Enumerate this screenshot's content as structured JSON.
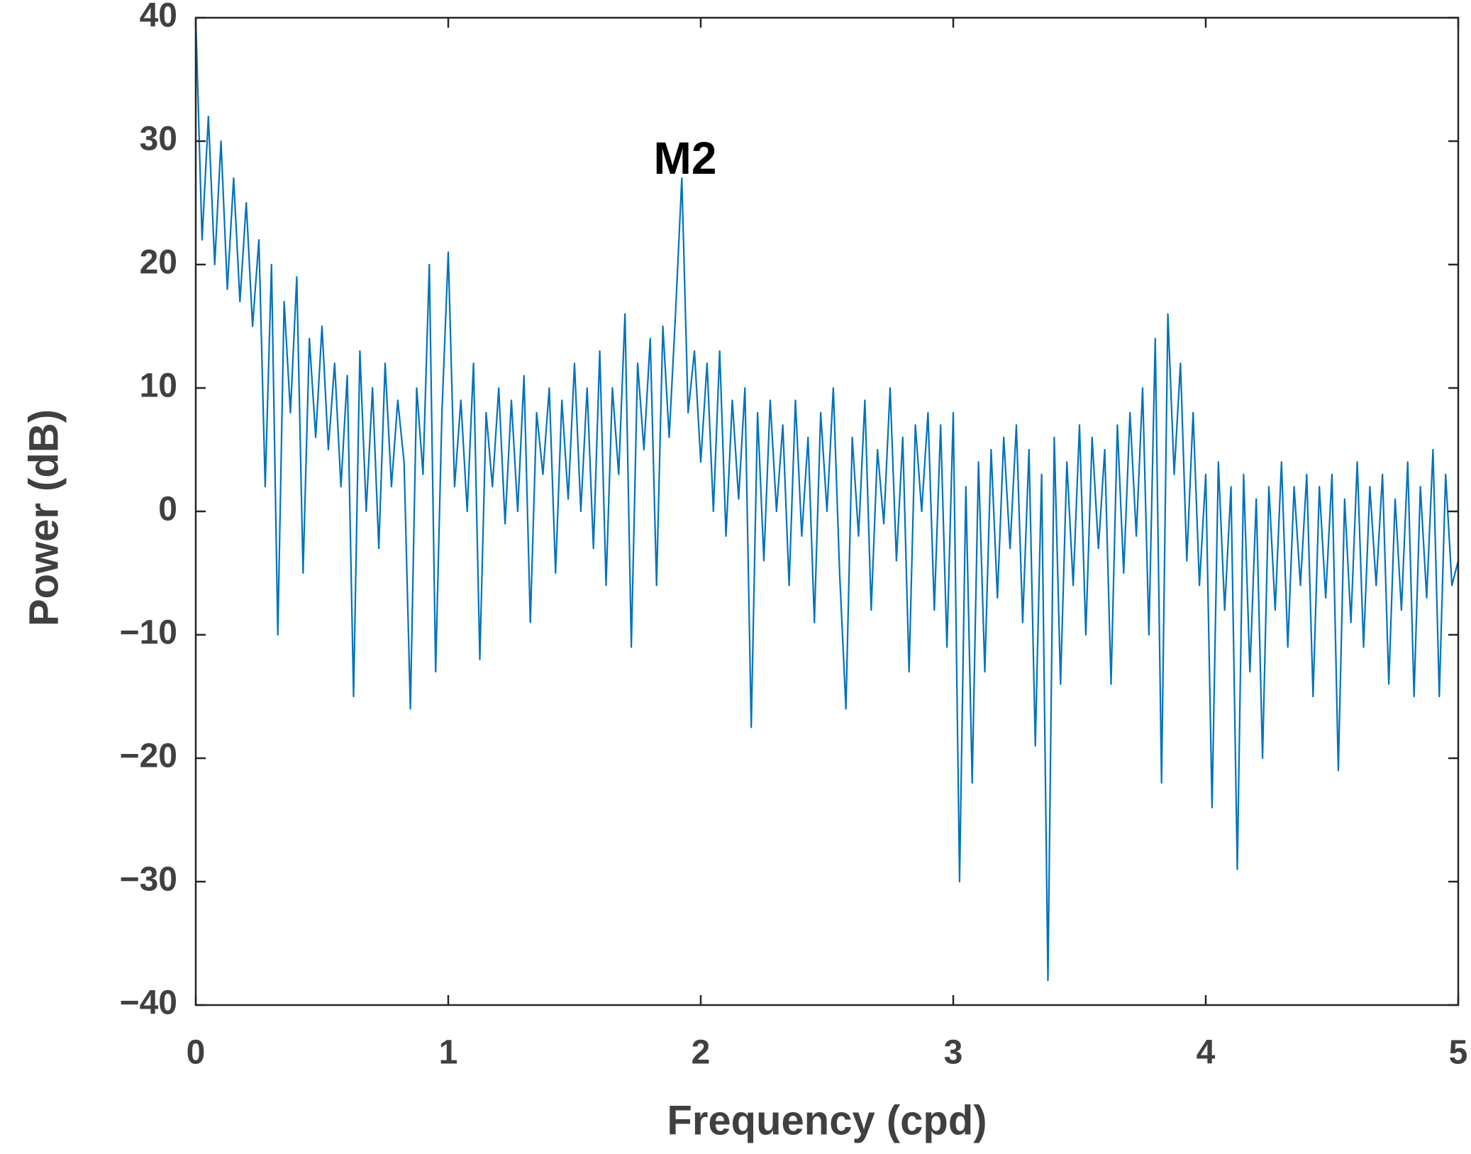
{
  "chart_data": {
    "type": "line",
    "xlabel": "Frequency (cpd)",
    "ylabel": "Power (dB)",
    "annotation": "M2",
    "xlim": [
      0,
      5
    ],
    "ylim": [
      -40,
      40
    ],
    "xticks": [
      0,
      1,
      2,
      3,
      4,
      5
    ],
    "yticks": [
      {
        "value": -40,
        "label": "−40"
      },
      {
        "value": -30,
        "label": "−30"
      },
      {
        "value": -20,
        "label": "−20"
      },
      {
        "value": -10,
        "label": "−10"
      },
      0,
      10,
      20,
      30,
      40
    ],
    "series": [
      {
        "color": "#0072bd",
        "x": [
          0,
          0.025,
          0.05,
          0.075,
          0.1,
          0.125,
          0.15,
          0.175,
          0.2,
          0.225,
          0.25,
          0.275,
          0.3,
          0.325,
          0.35,
          0.375,
          0.4,
          0.425,
          0.45,
          0.475,
          0.5,
          0.525,
          0.55,
          0.575,
          0.6,
          0.625,
          0.65,
          0.675,
          0.7,
          0.725,
          0.75,
          0.775,
          0.8,
          0.825,
          0.85,
          0.875,
          0.9,
          0.925,
          0.95,
          0.975,
          1,
          1.025,
          1.05,
          1.075,
          1.1,
          1.125,
          1.15,
          1.175,
          1.2,
          1.225,
          1.25,
          1.275,
          1.3,
          1.325,
          1.35,
          1.375,
          1.4,
          1.425,
          1.45,
          1.475,
          1.5,
          1.525,
          1.55,
          1.575,
          1.6,
          1.625,
          1.65,
          1.675,
          1.7,
          1.725,
          1.75,
          1.775,
          1.8,
          1.825,
          1.85,
          1.875,
          1.9,
          1.925,
          1.95,
          1.975,
          2,
          2.025,
          2.05,
          2.075,
          2.1,
          2.125,
          2.15,
          2.175,
          2.2,
          2.225,
          2.25,
          2.275,
          2.3,
          2.325,
          2.35,
          2.375,
          2.4,
          2.425,
          2.45,
          2.475,
          2.5,
          2.525,
          2.55,
          2.575,
          2.6,
          2.625,
          2.65,
          2.675,
          2.7,
          2.725,
          2.75,
          2.775,
          2.8,
          2.825,
          2.85,
          2.875,
          2.9,
          2.925,
          2.95,
          2.975,
          3,
          3.025,
          3.05,
          3.075,
          3.1,
          3.125,
          3.15,
          3.175,
          3.2,
          3.225,
          3.25,
          3.275,
          3.3,
          3.325,
          3.35,
          3.375,
          3.4,
          3.425,
          3.45,
          3.475,
          3.5,
          3.525,
          3.55,
          3.575,
          3.6,
          3.625,
          3.65,
          3.675,
          3.7,
          3.725,
          3.75,
          3.775,
          3.8,
          3.825,
          3.85,
          3.875,
          3.9,
          3.925,
          3.95,
          3.975,
          4,
          4.025,
          4.05,
          4.075,
          4.1,
          4.125,
          4.15,
          4.175,
          4.2,
          4.225,
          4.25,
          4.275,
          4.3,
          4.325,
          4.35,
          4.375,
          4.4,
          4.425,
          4.45,
          4.475,
          4.5,
          4.525,
          4.55,
          4.575,
          4.6,
          4.625,
          4.65,
          4.675,
          4.7,
          4.725,
          4.75,
          4.775,
          4.8,
          4.825,
          4.85,
          4.875,
          4.9,
          4.925,
          4.95,
          4.975,
          5
        ],
        "values": [
          40,
          22,
          32,
          20,
          30,
          18,
          27,
          17,
          25,
          15,
          22,
          2,
          20,
          -10,
          17,
          8,
          19,
          -5,
          14,
          6,
          15,
          5,
          12,
          2,
          11,
          -15,
          13,
          0,
          10,
          -3,
          12,
          2,
          9,
          4,
          -16,
          10,
          3,
          20,
          -13,
          8,
          21,
          2,
          9,
          0,
          12,
          -12,
          8,
          2,
          10,
          -1,
          9,
          0,
          11,
          -9,
          8,
          3,
          10,
          -5,
          9,
          1,
          12,
          0,
          10,
          -3,
          13,
          -6,
          10,
          3,
          16,
          -11,
          12,
          5,
          14,
          -6,
          15,
          6,
          16,
          27,
          8,
          13,
          4,
          12,
          0,
          13,
          -2,
          9,
          1,
          10,
          -17.5,
          8,
          -4,
          9,
          0,
          7,
          -6,
          9,
          -2,
          6,
          -9,
          8,
          0,
          10,
          -5,
          -16,
          6,
          -2,
          9,
          -8,
          5,
          -1,
          10,
          -4,
          6,
          -13,
          7,
          0,
          8,
          -8,
          7,
          -11,
          8,
          -30,
          2,
          -22,
          4,
          -13,
          5,
          -7,
          6,
          -3,
          7,
          -9,
          5,
          -19,
          3,
          -38,
          6,
          -14,
          4,
          -6,
          7,
          -10,
          6,
          -3,
          5,
          -14,
          7,
          -5,
          8,
          -2,
          10,
          -10,
          14,
          -22,
          16,
          3,
          12,
          -4,
          8,
          -6,
          3,
          -24,
          4,
          -8,
          2,
          -29,
          3,
          -13,
          1,
          -20,
          2,
          -8,
          4,
          -11,
          2,
          -6,
          3,
          -15,
          2,
          -7,
          3,
          -21,
          1,
          -9,
          4,
          -11,
          2,
          -6,
          3,
          -14,
          1,
          -8,
          4,
          -15,
          2,
          -7,
          5,
          -15,
          3,
          -6,
          -4
        ]
      }
    ]
  }
}
